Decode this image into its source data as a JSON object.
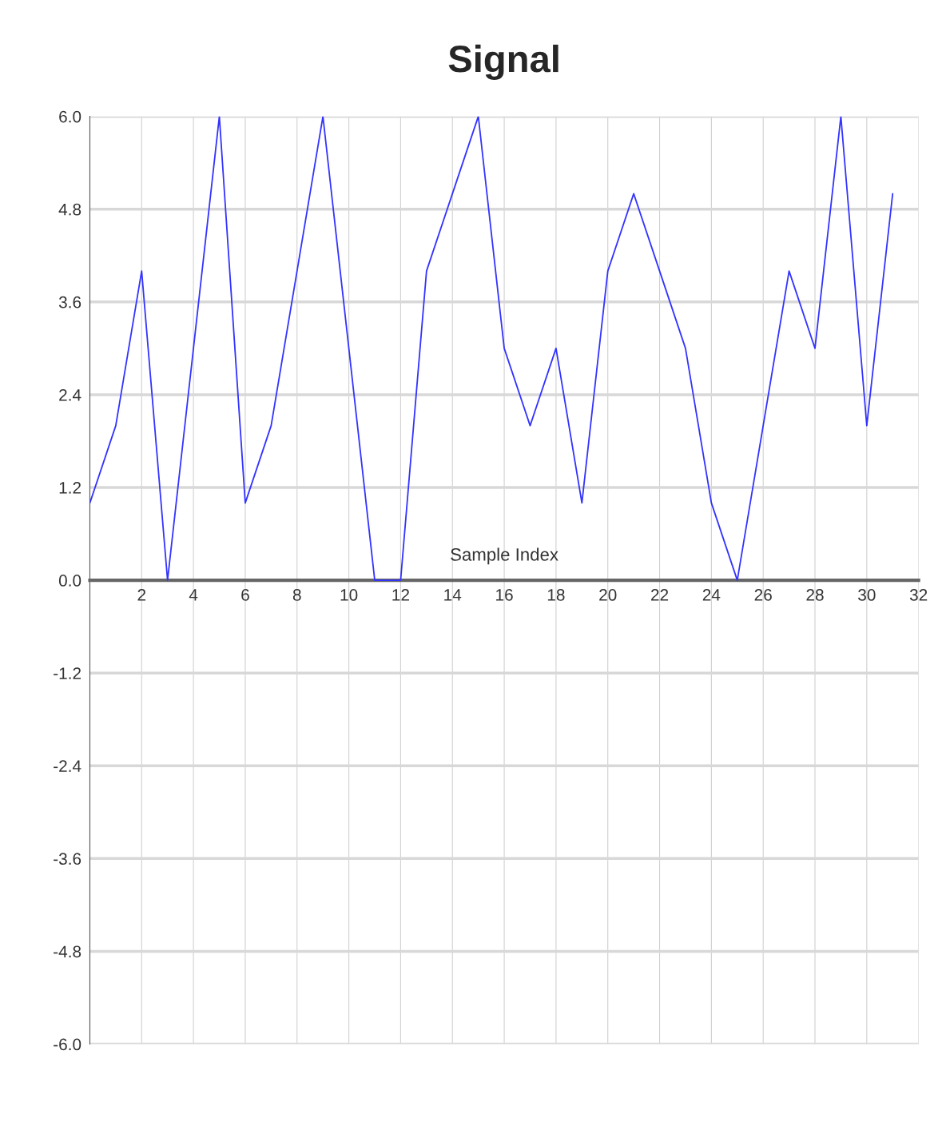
{
  "chart_data": {
    "type": "line",
    "title": "Signal",
    "xlabel": "Sample Index",
    "x": [
      0,
      1,
      2,
      3,
      4,
      5,
      6,
      7,
      8,
      9,
      10,
      11,
      12,
      13,
      14,
      15,
      16,
      17,
      18,
      19,
      20,
      21,
      22,
      23,
      24,
      25,
      26,
      27,
      28,
      29,
      30,
      31
    ],
    "series": [
      {
        "color": "#3333ff",
        "values": [
          1,
          2,
          4,
          0,
          3,
          6,
          1,
          2,
          4,
          6,
          3,
          0,
          0,
          4,
          5,
          6,
          3,
          2,
          3,
          1,
          4,
          5,
          4,
          3,
          1,
          0,
          2,
          4,
          3,
          6,
          2,
          5
        ]
      }
    ],
    "xlim": [
      0,
      32
    ],
    "xticks": [
      2,
      4,
      6,
      8,
      10,
      12,
      14,
      16,
      18,
      20,
      22,
      24,
      26,
      28,
      30,
      32
    ],
    "ylim": [
      -6,
      6
    ],
    "yticks": [
      {
        "value": -6,
        "label": "-6.0"
      },
      {
        "value": -4.8,
        "label": "-4.8"
      },
      {
        "value": -3.6,
        "label": "-3.6"
      },
      {
        "value": -2.4,
        "label": "-2.4"
      },
      {
        "value": -1.2,
        "label": "-1.2"
      },
      {
        "value": 0,
        "label": "0.0"
      },
      {
        "value": 1.2,
        "label": "1.2"
      },
      {
        "value": 2.4,
        "label": "2.4"
      },
      {
        "value": 3.6,
        "label": "3.6"
      },
      {
        "value": 4.8,
        "label": "4.8"
      },
      {
        "value": 6,
        "label": "6.0"
      }
    ],
    "grid": true,
    "marker": "none",
    "line_style": "solid"
  }
}
